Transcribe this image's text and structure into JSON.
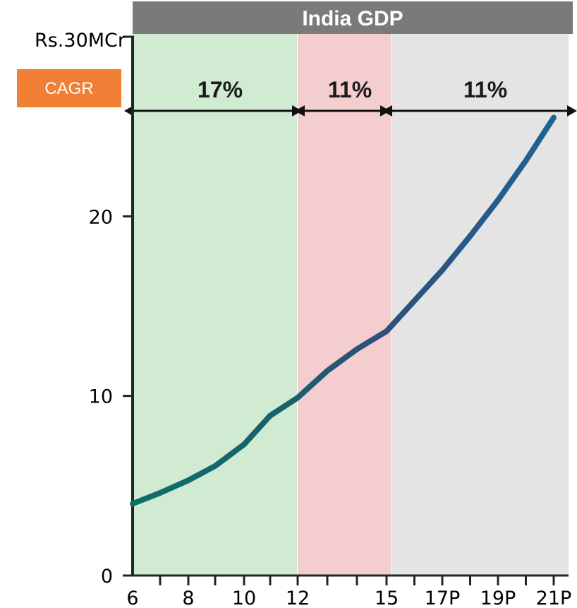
{
  "chart_data": {
    "type": "line",
    "title": "India GDP",
    "ylabel_top": "Rs.30MCr",
    "ylim": [
      0,
      30
    ],
    "yticks": [
      0,
      10,
      20
    ],
    "ytick_labels": [
      "0",
      "10",
      "20"
    ],
    "x_ticks": [
      6,
      8,
      10,
      12,
      15,
      17,
      19,
      21
    ],
    "x_tick_labels": [
      "6",
      "8",
      "10",
      "12",
      "15",
      "17P",
      "19P",
      "21P"
    ],
    "series": [
      {
        "x": [
          6,
          7,
          8,
          9,
          10,
          11,
          12,
          13,
          14,
          15,
          16,
          17,
          18,
          19,
          20,
          21
        ],
        "values": [
          4.0,
          4.6,
          5.3,
          6.1,
          7.3,
          8.9,
          9.9,
          11.4,
          12.6,
          13.6,
          15.3,
          17.0,
          18.9,
          20.9,
          23.1,
          25.5
        ]
      }
    ],
    "bands": [
      {
        "from": 6,
        "to": 12,
        "label": "17%",
        "color": "#d1ead2"
      },
      {
        "from": 12,
        "to": 15,
        "label": "11%",
        "color": "#f4cdcf"
      },
      {
        "from": 15,
        "to": 22,
        "label": "11%",
        "color": "#e4e4e4"
      }
    ],
    "cagr_label": "CAGR",
    "colors": {
      "title_bar": "#7a7a7a",
      "cagr_box": "#ef7f35",
      "line_start": "#0e6f6a",
      "line_mid": "#2f4f7a",
      "line_end": "#1e6394",
      "axis": "#1a2a1a"
    }
  }
}
